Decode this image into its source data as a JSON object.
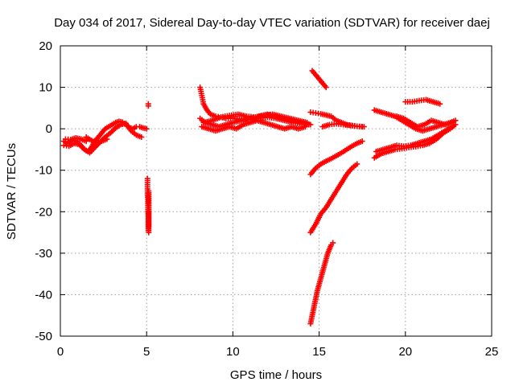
{
  "chart_data": {
    "type": "scatter",
    "title": "Day 034 of 2017, Sidereal Day-to-day VTEC variation (SDTVAR) for receiver daej",
    "xlabel": "GPS time / hours",
    "ylabel": "SDTVAR / TECUs",
    "xlim": [
      0,
      25
    ],
    "ylim": [
      -50,
      20
    ],
    "x_ticks": [
      0,
      5,
      10,
      15,
      20,
      25
    ],
    "y_ticks": [
      -50,
      -40,
      -30,
      -20,
      -10,
      0,
      10,
      20
    ],
    "grid": true,
    "marker": "+",
    "color": "#ff0000",
    "series": [
      {
        "x": [
          0.2,
          0.4,
          0.6,
          0.8,
          1.0,
          1.2,
          1.4,
          1.6,
          1.8,
          2.0,
          2.2,
          2.4,
          2.6,
          2.8,
          3.0,
          3.2,
          3.4,
          3.6,
          3.8,
          4.0,
          4.2,
          4.4,
          4.6,
          4.8,
          5.0
        ],
        "y": [
          -3,
          -3.5,
          -3,
          -2.8,
          -3.2,
          -4,
          -5,
          -5.5,
          -4.5,
          -3,
          -2,
          -1,
          0,
          0.5,
          1,
          1.5,
          1.8,
          1.6,
          1,
          0.3,
          0,
          0.5,
          0.5,
          0.2,
          0
        ]
      },
      {
        "x": [
          0.2,
          0.5,
          0.8,
          1.1,
          1.4,
          1.7,
          2.0,
          2.3,
          2.6,
          2.9,
          3.2,
          3.5,
          3.8,
          4.1,
          4.4,
          4.7
        ],
        "y": [
          -4,
          -4.2,
          -3.5,
          -3.8,
          -5,
          -5.8,
          -4.5,
          -3.2,
          -2,
          -1,
          0.2,
          1,
          1.3,
          -0.5,
          -1.5,
          -2
        ]
      },
      {
        "x": [
          0.3,
          0.6,
          0.9,
          1.2,
          1.5
        ],
        "y": [
          -2.5,
          -2.6,
          -2.2,
          -2.5,
          -3
        ]
      },
      {
        "x": [
          1.5,
          1.8,
          2.1,
          2.4,
          2.7
        ],
        "y": [
          -2,
          -2.8,
          -3.5,
          -3,
          -2.5
        ]
      },
      {
        "x": [
          5.1,
          5.1
        ],
        "y": [
          5.5,
          6
        ]
      },
      {
        "x": [
          5.05,
          5.05,
          5.05,
          5.05,
          5.08,
          5.08,
          5.08,
          5.1,
          5.1,
          5.1,
          5.1,
          5.12,
          5.12,
          5.12,
          5.12
        ],
        "y": [
          -12,
          -13,
          -14,
          -16,
          -17,
          -18,
          -20,
          -21,
          -22,
          -23,
          -24,
          -25,
          -19,
          -15,
          -23.5
        ]
      },
      {
        "x": [
          8.1,
          8.2,
          8.3,
          8.5,
          8.7,
          9.0,
          9.3,
          9.6,
          10.0,
          10.5,
          11.0,
          11.5,
          12.0,
          12.5,
          13.0,
          13.5,
          14.0,
          14.4
        ],
        "y": [
          10,
          8,
          6,
          4.5,
          3.5,
          3,
          2.8,
          2.5,
          2.5,
          2.3,
          2.2,
          2.5,
          2.8,
          2.5,
          2,
          1.5,
          1.2,
          1
        ]
      },
      {
        "x": [
          8.1,
          8.4,
          8.8,
          9.2,
          9.6,
          10.0,
          10.5,
          11.0,
          11.5,
          12.0,
          12.5,
          13.0,
          13.5,
          14.0,
          14.5
        ],
        "y": [
          2.5,
          1.5,
          1,
          0.5,
          1,
          1.5,
          2,
          2.5,
          3,
          3.5,
          3,
          2.5,
          2,
          1.5,
          1
        ]
      },
      {
        "x": [
          8.2,
          8.6,
          9.0,
          9.4,
          9.8,
          10.2,
          10.6,
          11.0,
          11.4,
          11.8,
          12.2,
          12.6,
          13.0,
          13.4,
          13.8,
          14.2
        ],
        "y": [
          0.5,
          0,
          -0.5,
          0,
          0.5,
          0,
          1,
          1.5,
          2,
          1.5,
          1,
          0.5,
          0,
          0.5,
          0,
          0.5
        ]
      },
      {
        "x": [
          8.3,
          8.8,
          9.3,
          9.8,
          10.3,
          10.8,
          11.3,
          11.8,
          12.3,
          12.8,
          13.3,
          13.8,
          14.3
        ],
        "y": [
          1.5,
          2,
          2.8,
          3.2,
          3.5,
          3,
          2.8,
          3.2,
          3.5,
          3,
          2.5,
          2,
          1.5
        ]
      },
      {
        "x": [
          14.6,
          14.8,
          15.0,
          15.2,
          15.4
        ],
        "y": [
          14,
          13,
          12,
          11,
          10
        ]
      },
      {
        "x": [
          14.5,
          14.8,
          15.1,
          15.4,
          15.7,
          16.0,
          16.3,
          16.6,
          16.9,
          17.2,
          17.5
        ],
        "y": [
          4,
          3.8,
          3.6,
          3.3,
          3,
          2,
          1.5,
          1,
          0.8,
          0.6,
          0.5
        ]
      },
      {
        "x": [
          15.2,
          15.6,
          16.0,
          16.4,
          16.8,
          17.2,
          17.6
        ],
        "y": [
          0.5,
          1,
          1.2,
          1,
          0.8,
          0.6,
          0.5
        ]
      },
      {
        "x": [
          14.5,
          14.8,
          15.1,
          15.4,
          15.7,
          16.0,
          16.3,
          16.6,
          16.9,
          17.2,
          17.5
        ],
        "y": [
          -11,
          -9.5,
          -8.5,
          -7.8,
          -7.2,
          -6.5,
          -5.8,
          -5,
          -4.2,
          -3.5,
          -3
        ]
      },
      {
        "x": [
          14.5,
          14.8,
          15.1,
          15.4,
          15.7,
          16.0,
          16.3,
          16.6,
          16.9,
          17.2
        ],
        "y": [
          -25,
          -23,
          -20.5,
          -19,
          -17,
          -15,
          -13,
          -11,
          -9.5,
          -8.5
        ]
      },
      {
        "x": [
          14.5,
          14.7,
          14.9,
          15.1,
          15.3,
          15.5,
          15.7,
          15.8
        ],
        "y": [
          -47,
          -43,
          -39,
          -36,
          -33,
          -30,
          -28,
          -27.5
        ]
      },
      {
        "x": [
          18.2,
          18.6,
          19.0,
          19.4,
          19.8,
          20.2,
          20.6,
          21.0,
          21.4,
          21.8,
          22.2,
          22.6,
          22.9
        ],
        "y": [
          -7,
          -6,
          -5.5,
          -5,
          -4.8,
          -4.5,
          -4.3,
          -4,
          -3.5,
          -2.5,
          -1,
          0,
          1
        ]
      },
      {
        "x": [
          18.3,
          18.7,
          19.1,
          19.5,
          19.9,
          20.3,
          20.7,
          21.1,
          21.5,
          21.9,
          22.3,
          22.7
        ],
        "y": [
          -5.5,
          -5,
          -4.5,
          -4,
          -4.2,
          -4,
          -3.5,
          -3,
          -2.5,
          -1.5,
          -0.5,
          0.5
        ]
      },
      {
        "x": [
          18.2,
          18.6,
          19.0,
          19.4,
          19.8,
          20.2,
          20.6,
          21.0,
          21.4,
          21.8,
          22.2,
          22.6,
          22.9
        ],
        "y": [
          4.5,
          4,
          3.5,
          3,
          2,
          1,
          0,
          -0.5,
          0,
          0.5,
          1,
          1.5,
          2
        ]
      },
      {
        "x": [
          20.0,
          20.4,
          20.8,
          21.2,
          21.6,
          22.0
        ],
        "y": [
          6.5,
          6.5,
          6.8,
          7,
          6.5,
          6
        ]
      },
      {
        "x": [
          19.5,
          19.9,
          20.3,
          20.7,
          21.1,
          21.5,
          21.9,
          22.3,
          22.7
        ],
        "y": [
          3,
          2.5,
          1.5,
          0.5,
          1,
          2,
          1.5,
          1,
          1.5
        ]
      }
    ]
  }
}
